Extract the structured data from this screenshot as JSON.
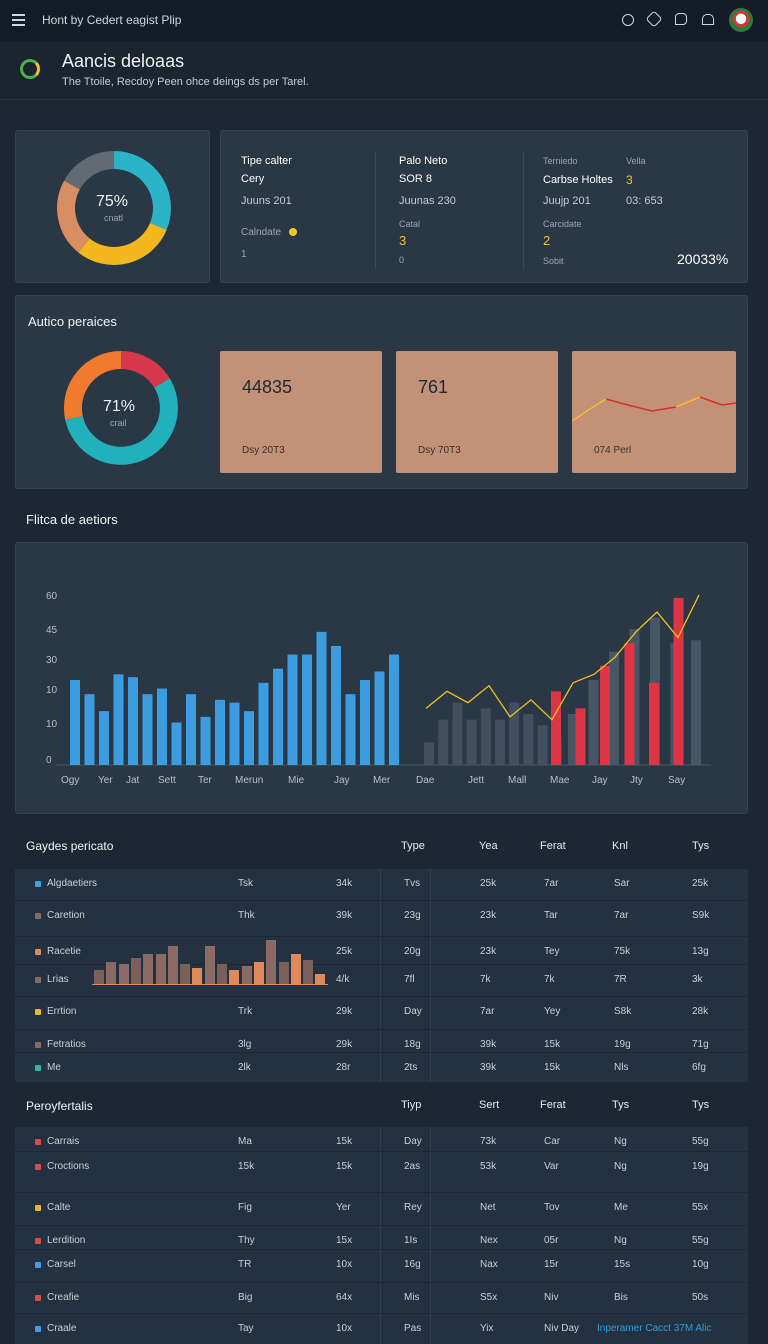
{
  "topbar": {
    "title": "Hont by Cedert eagist Plip",
    "icons": [
      "menu-icon",
      "clock-icon",
      "link-icon",
      "chat-icon",
      "home-icon",
      "avatar"
    ]
  },
  "header": {
    "title": "Aancis deloaas",
    "subtitle": "The Ttoile, Recdoy Peen ohce deings ds per Tarel."
  },
  "kpi_panel": {
    "donut_label": "75%",
    "donut_sub": "cnatl",
    "col1": {
      "h1": "Tipe calter",
      "h2": "Cery",
      "date": "Juuns 201",
      "cal": "Calndate",
      "num": "1"
    },
    "col2": {
      "h1": "Palo Neto",
      "h2": "SOR 8",
      "date": "Juunas 230",
      "cal": "Catal",
      "v1": "3",
      "v2": "0"
    },
    "col3": {
      "h1": "Terniedo",
      "h1b": "Vella",
      "h2": "Carbse Holtes",
      "h2v": "3",
      "date": "Juujp 201",
      "dateb": "03: 653",
      "cal": "Carcidate",
      "v1": "2",
      "sub": "Sobit",
      "pct": "20033%"
    }
  },
  "perf_panel": {
    "title": "Autico peraices",
    "donut_label": "71%",
    "donut_sub": "crail",
    "tiles": [
      {
        "value": "44835",
        "caption": "Dsy 20T3"
      },
      {
        "value": "761",
        "caption": "Dsy 70T3"
      },
      {
        "value": "",
        "caption": "074 Perl"
      }
    ]
  },
  "chart_title": "Flitca de aetiors",
  "chart_data": {
    "type": "bar",
    "ytick_labels": [
      "60",
      "45",
      "30",
      "10",
      "10",
      "0"
    ],
    "x_labels": [
      "Ogy",
      "Yer",
      "Jat",
      "Sett",
      "Ter",
      "Merun",
      "Mie",
      "Jay",
      "Mer",
      "Dae",
      "Jett",
      "Mall",
      "Mae",
      "Jay",
      "Jty",
      "Say"
    ],
    "blue_bars": [
      30,
      25,
      19,
      32,
      31,
      25,
      27,
      15,
      25,
      17,
      23,
      22,
      19,
      29,
      34,
      39,
      39,
      47,
      42,
      25,
      30,
      33,
      39
    ],
    "gray_bars": [
      8,
      16,
      22,
      16,
      20,
      16,
      22,
      18,
      14,
      10
    ],
    "red_bars": [
      26,
      20,
      35,
      43,
      29,
      59
    ],
    "dark_bars": [
      18,
      30,
      40,
      48,
      52,
      43,
      44
    ],
    "line": [
      20,
      26,
      22,
      28,
      17,
      23,
      16,
      29,
      32,
      38,
      47,
      54,
      45,
      60
    ]
  },
  "table1": {
    "title": "Gaydes pericato",
    "headers": [
      "Type",
      "Yea",
      "Ferat",
      "Knl",
      "Tys"
    ],
    "rows": [
      {
        "label": "Algdaetiers",
        "color": "#3ea1de",
        "c": [
          "Tsk",
          "34k",
          "Tvs",
          "25k",
          "7ar",
          "Sar",
          "25k"
        ]
      },
      {
        "label": "Caretion",
        "color": "#8a6a62",
        "c": [
          "Thk",
          "39k",
          "23g",
          "23k",
          "Tar",
          "7ar",
          "S9k"
        ]
      },
      {
        "label": "Racetie",
        "color": "#e08a5a",
        "c": [
          "",
          "25k",
          "20g",
          "23k",
          "Tey",
          "75k",
          "13g"
        ]
      },
      {
        "label": "Lrias",
        "color": "#8a6a62",
        "c": [
          "",
          "4/k",
          "7fl",
          "7k",
          "7k",
          "7R",
          "3k"
        ]
      },
      {
        "label": "Errtion",
        "color": "#e8b82e",
        "c": [
          "Trk",
          "29k",
          "Day",
          "7ar",
          "Yey",
          "S8k",
          "28k"
        ]
      },
      {
        "label": "Fetratios",
        "color": "#8a6a62",
        "c": [
          "3lg",
          "29k",
          "18g",
          "39k",
          "15k",
          "19g",
          "71g"
        ]
      },
      {
        "label": "Me",
        "color": "#2fb5b0",
        "c": [
          "2lk",
          "28r",
          "2ts",
          "39k",
          "15k",
          "Nls",
          "6fg"
        ]
      }
    ]
  },
  "table2": {
    "title": "Peroyfertalis",
    "headers": [
      "Tiyp",
      "Sert",
      "Ferat",
      "Tys",
      "Tys"
    ],
    "rows": [
      {
        "label": "Carrais",
        "color": "#d94a4a",
        "c": [
          "Ma",
          "15k",
          "Day",
          "73k",
          "Car",
          "Ng",
          "55g"
        ]
      },
      {
        "label": "Croctions",
        "color": "#d94a4a",
        "c": [
          "15k",
          "15k",
          "2as",
          "53k",
          "Var",
          "Ng",
          "19g"
        ]
      },
      {
        "label": "Calte",
        "color": "#e8b82e",
        "c": [
          "Fig",
          "Yer",
          "Rey",
          "Net",
          "Tov",
          "Me",
          "55x"
        ]
      },
      {
        "label": "Lerdition",
        "color": "#d94a4a",
        "c": [
          "Thy",
          "15x",
          "1Is",
          "Nex",
          "05r",
          "Ng",
          "55g"
        ]
      },
      {
        "label": "Carsel",
        "color": "#3ea1de",
        "c": [
          "TR",
          "10x",
          "16g",
          "Nax",
          "15r",
          "15s",
          "10g"
        ]
      },
      {
        "label": "Creafie",
        "color": "#d94a4a",
        "c": [
          "Big",
          "64x",
          "Mis",
          "S5x",
          "Niv",
          "Bis",
          "50s"
        ]
      },
      {
        "label": "Craale",
        "color": "#3ea1de",
        "c": [
          "Tay",
          "10x",
          "Pas",
          "Yix",
          "Niv Day",
          "",
          ""
        ]
      }
    ],
    "footer_link": "Inperamer Cacct 37M Alic"
  }
}
